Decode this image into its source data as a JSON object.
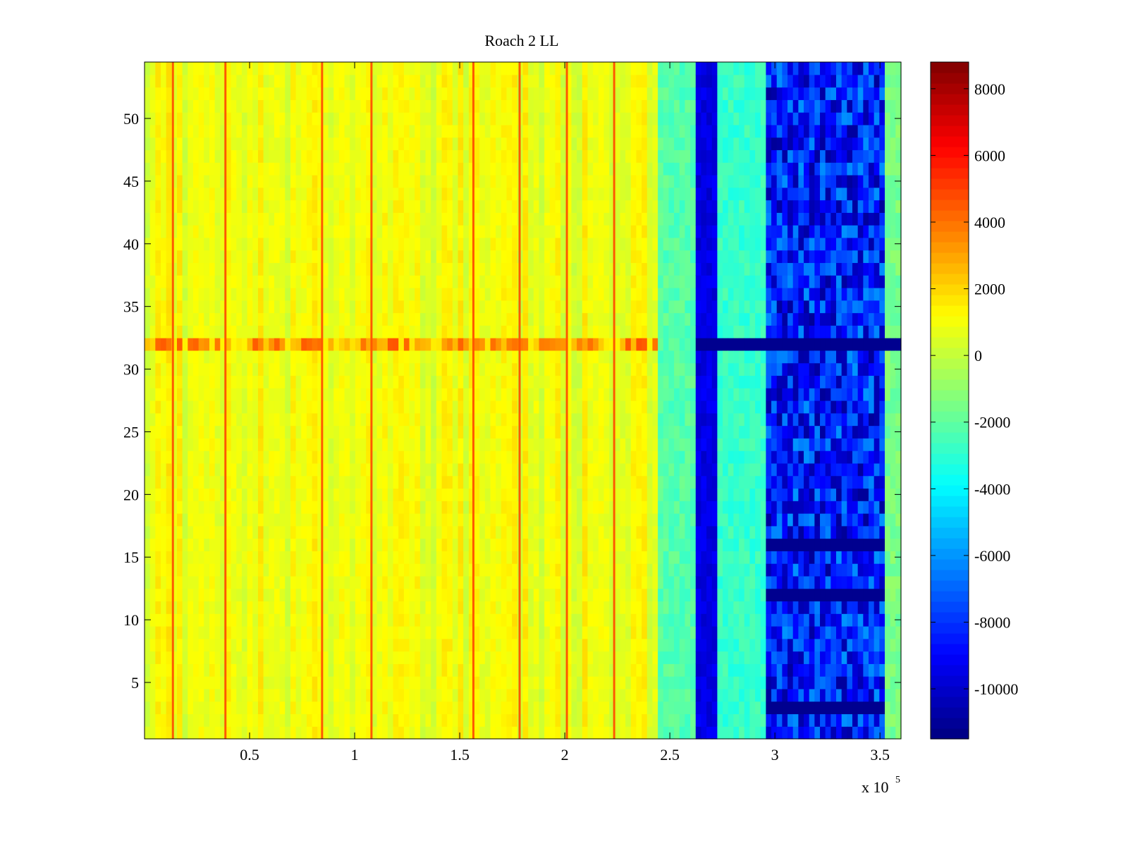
{
  "chart_data": {
    "type": "heatmap",
    "title": "Roach 2 LL",
    "xlabel": "",
    "ylabel": "",
    "x_exponent_label": {
      "base": "x 10",
      "exp": "5"
    },
    "xlim": [
      0,
      360000
    ],
    "ylim": [
      0.5,
      54.5
    ],
    "xticks": [
      50000,
      100000,
      150000,
      200000,
      250000,
      300000,
      350000
    ],
    "xtick_labels": [
      "0.5",
      "1",
      "1.5",
      "2",
      "2.5",
      "3",
      "3.5"
    ],
    "yticks": [
      5,
      10,
      15,
      20,
      25,
      30,
      35,
      40,
      45,
      50
    ],
    "ytick_labels": [
      "5",
      "10",
      "15",
      "20",
      "25",
      "30",
      "35",
      "40",
      "45",
      "50"
    ],
    "colormap": "jet",
    "clim": [
      -11500,
      8800
    ],
    "colorbar_ticks": [
      8000,
      6000,
      4000,
      2000,
      0,
      -2000,
      -4000,
      -6000,
      -8000,
      -10000
    ],
    "colorbar_tick_labels": [
      "8000",
      "6000",
      "4000",
      "2000",
      "0",
      "-2000",
      "-4000",
      "-6000",
      "-8000",
      "-10000"
    ],
    "rows": 54,
    "regions": [
      {
        "x_range": [
          0,
          245000
        ],
        "value": 900,
        "description_level": "yellow"
      },
      {
        "x_range": [
          245000,
          262000
        ],
        "value": -2200
      },
      {
        "x_range": [
          262000,
          272000
        ],
        "value": -9500
      },
      {
        "x_range": [
          272000,
          295000
        ],
        "value": -2800
      },
      {
        "x_range": [
          295000,
          352000
        ],
        "value": -8500
      },
      {
        "x_range": [
          352000,
          360000
        ],
        "value": -1500
      }
    ],
    "hot_columns_x": [
      13500,
      38500,
      84500,
      108000,
      156500,
      178500,
      201000,
      223500
    ],
    "hot_column_value": 4500,
    "special_row": {
      "y": 32,
      "value": 3000
    },
    "dark_rows_right": [
      3,
      12,
      16,
      32
    ]
  }
}
